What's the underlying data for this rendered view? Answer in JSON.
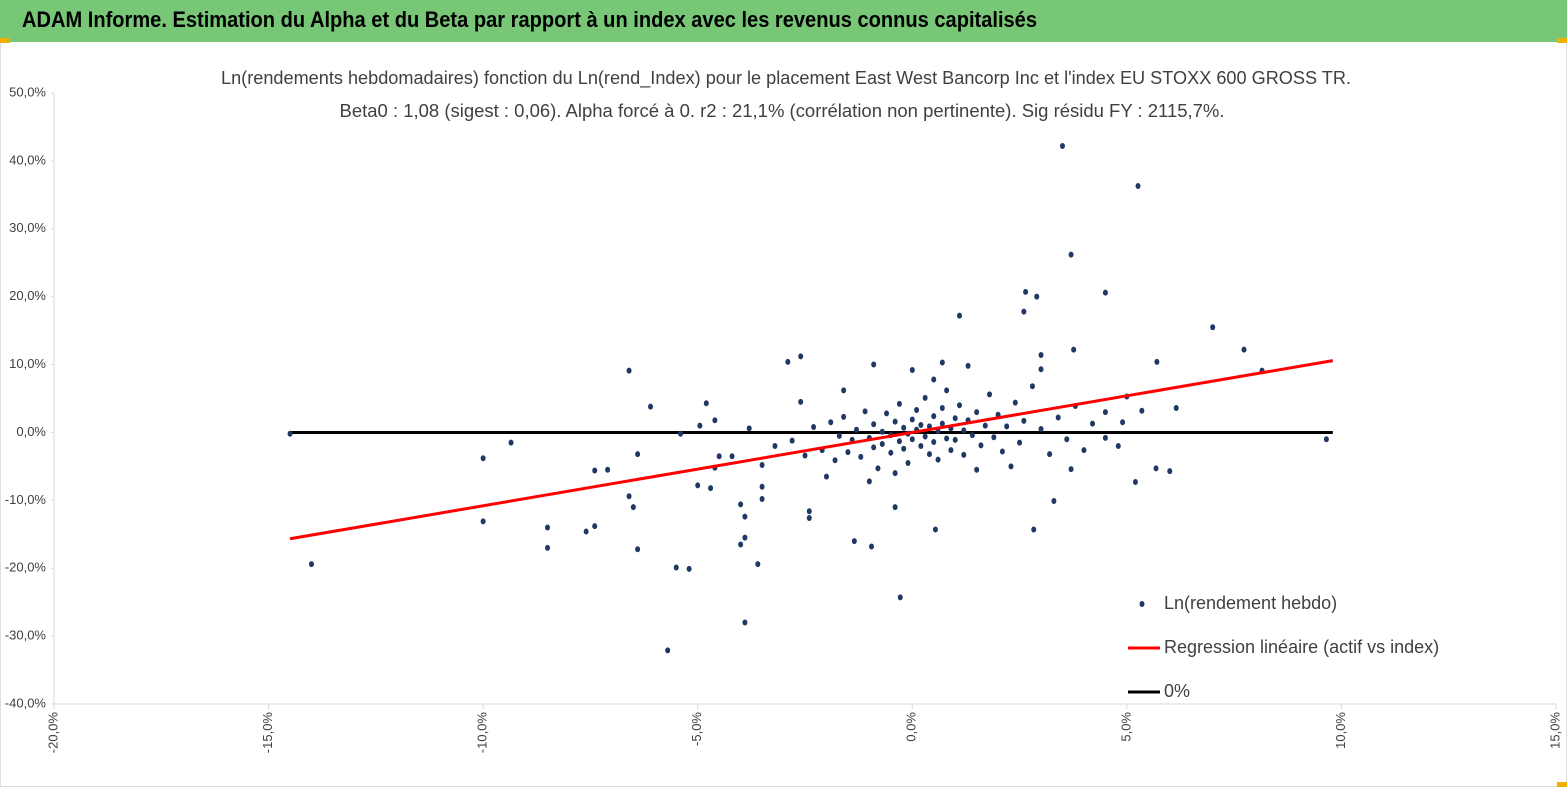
{
  "header": {
    "title": "ADAM Informe. Estimation du Alpha et du Beta par rapport à un index avec les revenus connus capitalisés"
  },
  "chart_data": {
    "type": "scatter",
    "title": "Ln(rendements hebdomadaires) fonction du Ln(rend_Index) pour le placement East West Bancorp Inc et l'index EU STOXX 600 GROSS TR.",
    "subtitle": "Beta0 : 1,08 (sigest : 0,06). Alpha forcé à 0. r2 : 21,1% (corrélation non pertinente). Sig résidu FY : 2115,7%.",
    "xlim": [
      -20,
      15
    ],
    "ylim": [
      -40,
      50
    ],
    "xticks": [
      {
        "value": -20,
        "label": "-20,0%"
      },
      {
        "value": -15,
        "label": "-15,0%"
      },
      {
        "value": -10,
        "label": "-10,0%"
      },
      {
        "value": -5,
        "label": "-5,0%"
      },
      {
        "value": 0,
        "label": "0,0%"
      },
      {
        "value": 5,
        "label": "5,0%"
      },
      {
        "value": 10,
        "label": "10,0%"
      },
      {
        "value": 15,
        "label": "15,0%"
      }
    ],
    "yticks": [
      {
        "value": -40,
        "label": "-40,0%"
      },
      {
        "value": -30,
        "label": "-30,0%"
      },
      {
        "value": -20,
        "label": "-20,0%"
      },
      {
        "value": -10,
        "label": "-10,0%"
      },
      {
        "value": 0,
        "label": "0,0%"
      },
      {
        "value": 10,
        "label": "10,0%"
      },
      {
        "value": 20,
        "label": "20,0%"
      },
      {
        "value": 30,
        "label": "30,0%"
      },
      {
        "value": 40,
        "label": "40,0%"
      },
      {
        "value": 50,
        "label": "50,0%"
      }
    ],
    "series": [
      {
        "name": "Ln(rendement hebdo)",
        "type": "scatter",
        "color": "#203864",
        "x": [
          -14.5,
          -14.0,
          -10.0,
          -10.0,
          -9.35,
          -8.5,
          -8.5,
          -7.4,
          -7.1,
          -7.6,
          -7.4,
          -6.6,
          -6.6,
          -6.5,
          -6.4,
          -6.4,
          -6.1,
          -5.7,
          -5.5,
          -5.2,
          -5.4,
          -4.95,
          -4.8,
          -4.6,
          -5.0,
          -4.7,
          -4.5,
          -4.6,
          -4.0,
          -3.9,
          -3.9,
          -3.6,
          -4.0,
          -3.9,
          -3.5,
          -3.5,
          -2.9,
          -2.6,
          -2.4,
          -2.4,
          -1.35,
          -0.95,
          -0.4,
          -0.28,
          0.54,
          1.1,
          2.64,
          2.9,
          2.6,
          2.83,
          3.0,
          3.0,
          3.5,
          3.7,
          3.76,
          3.3,
          4.0,
          3.7,
          4.5,
          5.26,
          5.0,
          4.9,
          4.5,
          5.2,
          5.35,
          4.8,
          5.7,
          5.68,
          6.0,
          6.15,
          7.0,
          7.73,
          8.15,
          9.65,
          -2.8,
          -2.5,
          -2.3,
          -2.1,
          -1.9,
          -1.8,
          -1.7,
          -1.6,
          -1.5,
          -1.4,
          -1.3,
          -1.2,
          -1.1,
          -1.0,
          -0.9,
          -0.9,
          -0.8,
          -0.7,
          -0.7,
          -0.6,
          -0.5,
          -0.5,
          -0.4,
          -0.3,
          -0.3,
          -0.2,
          -0.2,
          -0.1,
          -0.1,
          0.0,
          0.0,
          0.1,
          0.1,
          0.2,
          0.2,
          0.3,
          0.3,
          0.4,
          0.4,
          0.5,
          0.5,
          0.6,
          0.6,
          0.7,
          0.7,
          0.8,
          0.8,
          0.9,
          0.9,
          1.0,
          1.0,
          1.1,
          1.2,
          1.2,
          1.3,
          1.4,
          1.5,
          1.6,
          1.7,
          1.8,
          1.9,
          2.0,
          2.1,
          2.2,
          2.4,
          2.5,
          2.6,
          2.8,
          3.0,
          3.2,
          3.4,
          3.6,
          3.8,
          4.2,
          4.5,
          -3.2,
          -3.5,
          -3.8,
          -4.2,
          -2.0,
          1.5,
          -1.0,
          0.5,
          -0.4,
          2.3,
          -2.6,
          -1.6,
          0.0,
          1.3,
          -0.9,
          0.7
        ],
        "values": [
          -0.2,
          -19.4,
          -3.8,
          -13.1,
          -1.5,
          -14.0,
          -17.0,
          -5.6,
          -5.5,
          -14.6,
          -13.8,
          9.1,
          -9.4,
          -11.0,
          -17.2,
          -3.2,
          3.8,
          -32.1,
          -19.9,
          -20.1,
          -0.2,
          1.0,
          4.3,
          1.8,
          -7.8,
          -8.2,
          -3.5,
          -5.2,
          -16.5,
          -15.5,
          -28.0,
          -19.4,
          -10.6,
          -12.4,
          -9.8,
          -8.0,
          10.4,
          11.2,
          -11.6,
          -12.6,
          -16.0,
          -16.8,
          -11.0,
          -24.3,
          -14.3,
          17.2,
          20.7,
          20.0,
          17.8,
          -14.3,
          9.3,
          11.4,
          42.2,
          26.2,
          12.2,
          -10.1,
          -2.6,
          -5.4,
          20.6,
          36.3,
          5.3,
          1.5,
          3.0,
          -7.3,
          3.2,
          -2.0,
          10.4,
          -5.3,
          -5.7,
          3.6,
          15.5,
          12.2,
          9.1,
          -1.0,
          -1.2,
          -3.4,
          0.8,
          -2.6,
          1.5,
          -4.1,
          -0.5,
          2.3,
          -2.9,
          -1.1,
          0.4,
          -3.6,
          3.1,
          -0.8,
          -2.2,
          1.2,
          -5.3,
          0.1,
          -1.7,
          2.8,
          -0.4,
          -3.0,
          1.6,
          -1.3,
          4.2,
          -2.4,
          0.7,
          -0.2,
          -4.5,
          1.9,
          -1.0,
          0.4,
          3.3,
          -2.0,
          1.1,
          -0.6,
          5.1,
          -3.2,
          0.9,
          2.4,
          -1.4,
          0.2,
          -4.0,
          3.6,
          1.3,
          -0.9,
          6.2,
          -2.6,
          0.6,
          2.1,
          -1.1,
          4.0,
          0.3,
          -3.3,
          1.8,
          -0.4,
          3.0,
          -1.9,
          1.0,
          5.6,
          -0.7,
          2.6,
          -2.8,
          0.9,
          4.4,
          -1.5,
          1.7,
          6.8,
          0.5,
          -3.2,
          2.2,
          -1.0,
          3.9,
          1.3,
          -0.8,
          -2.0,
          -4.8,
          0.6,
          -3.5,
          -6.5,
          -5.5,
          -7.2,
          7.8,
          -6.0,
          -5.0,
          4.5,
          6.2,
          9.2,
          9.8,
          10.0,
          10.3
        ]
      },
      {
        "name": "Regression linéaire (actif vs index)",
        "type": "line",
        "color": "#ff0000",
        "x": [
          -14.5,
          9.8
        ],
        "values": [
          -15.66,
          10.58
        ]
      },
      {
        "name": "0%",
        "type": "line",
        "color": "#000000",
        "x": [
          -14.5,
          9.8
        ],
        "values": [
          0,
          0
        ]
      }
    ]
  }
}
